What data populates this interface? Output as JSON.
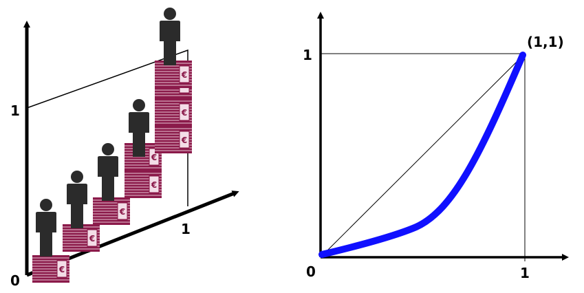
{
  "left_panel": {
    "origin_label": "0",
    "y_tick_label": "1",
    "x_tick_label": "1",
    "colors": {
      "bill": "#8b1a4a",
      "bill_light": "#e8c8d6",
      "person": "#2b2b2b"
    },
    "icons": {
      "person": "person-icon",
      "money": "euro-banknote-stack-icon"
    }
  },
  "right_panel": {
    "origin_label": "0",
    "x_tick_label": "1",
    "y_tick_label": "1",
    "corner_label": "(1,1)",
    "curve_color": "#1010ff"
  }
}
